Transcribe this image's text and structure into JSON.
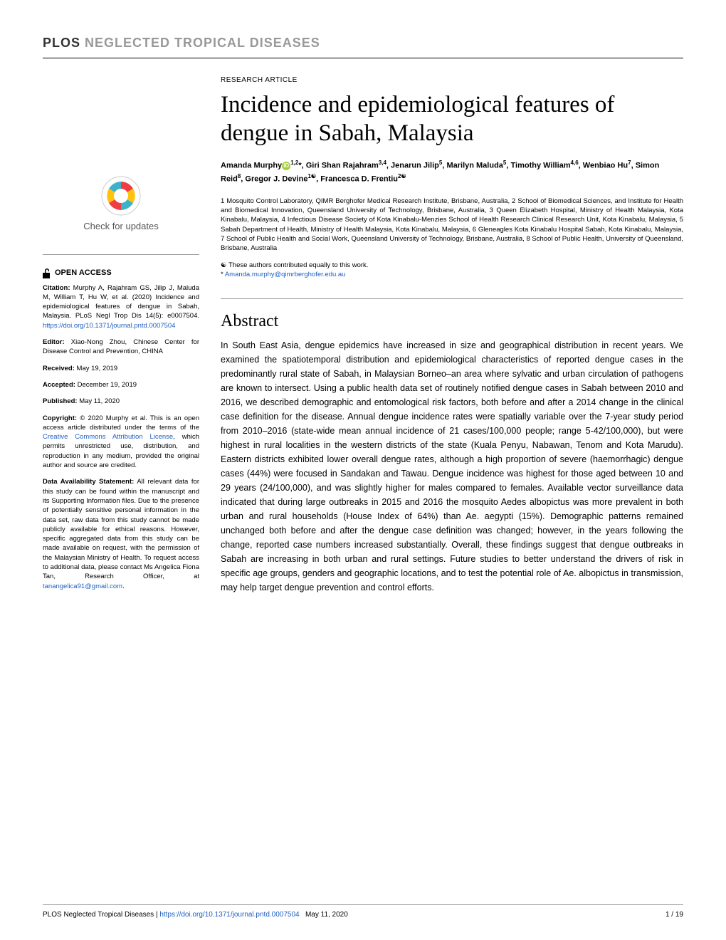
{
  "journal": {
    "brand": "PLOS",
    "name": "NEGLECTED TROPICAL DISEASES"
  },
  "article": {
    "type": "RESEARCH ARTICLE",
    "title": "Incidence and epidemiological features of dengue in Sabah, Malaysia",
    "authors_html": "Amanda Murphy<span class='orcid'>iD</span><sup>1,2</sup>*, Giri Shan Rajahram<sup>3,4</sup>, Jenarun Jilip<sup>5</sup>, Marilyn Maluda<sup>5</sup>, Timothy William<sup>4,6</sup>, Wenbiao Hu<sup>7</sup>, Simon Reid<sup>8</sup>, Gregor J. Devine<sup>1☯</sup>, Francesca D. Frentiu<sup>2☯</sup>",
    "affiliations": "1 Mosquito Control Laboratory, QIMR Berghofer Medical Research Institute, Brisbane, Australia, 2 School of Biomedical Sciences, and Institute for Health and Biomedical Innovation, Queensland University of Technology, Brisbane, Australia, 3 Queen Elizabeth Hospital, Ministry of Health Malaysia, Kota Kinabalu, Malaysia, 4 Infectious Disease Society of Kota Kinabalu-Menzies School of Health Research Clinical Research Unit, Kota Kinabalu, Malaysia, 5 Sabah Department of Health, Ministry of Health Malaysia, Kota Kinabalu, Malaysia, 6 Gleneagles Kota Kinabalu Hospital Sabah, Kota Kinabalu, Malaysia, 7 School of Public Health and Social Work, Queensland University of Technology, Brisbane, Australia, 8 School of Public Health, University of Queensland, Brisbane, Australia",
    "contrib_note": "☯ These authors contributed equally to this work.",
    "corresp_prefix": "* ",
    "corresp_email": "Amanda.murphy@qimrberghofer.edu.au"
  },
  "abstract": {
    "heading": "Abstract",
    "text": "In South East Asia, dengue epidemics have increased in size and geographical distribution in recent years. We examined the spatiotemporal distribution and epidemiological characteristics of reported dengue cases in the predominantly rural state of Sabah, in Malaysian Borneo–an area where sylvatic and urban circulation of pathogens are known to intersect. Using a public health data set of routinely notified dengue cases in Sabah between 2010 and 2016, we described demographic and entomological risk factors, both before and after a 2014 change in the clinical case definition for the disease. Annual dengue incidence rates were spatially variable over the 7-year study period from 2010–2016 (state-wide mean annual incidence of 21 cases/100,000 people; range 5-42/100,000), but were highest in rural localities in the western districts of the state (Kuala Penyu, Nabawan, Tenom and Kota Marudu). Eastern districts exhibited lower overall dengue rates, although a high proportion of severe (haemorrhagic) dengue cases (44%) were focused in Sandakan and Tawau. Dengue incidence was highest for those aged between 10 and 29 years (24/100,000), and was slightly higher for males compared to females. Available vector surveillance data indicated that during large outbreaks in 2015 and 2016 the mosquito Aedes albopictus was more prevalent in both urban and rural households (House Index of 64%) than Ae. aegypti (15%). Demographic patterns remained unchanged both before and after the dengue case definition was changed; however, in the years following the change, reported case numbers increased substantially. Overall, these findings suggest that dengue outbreaks in Sabah are increasing in both urban and rural settings. Future studies to better understand the drivers of risk in specific age groups, genders and geographic locations, and to test the potential role of Ae. albopictus in transmission, may help target dengue prevention and control efforts."
  },
  "sidebar": {
    "check_updates_label": "Check for updates",
    "open_access": "OPEN ACCESS",
    "citation_label": "Citation:",
    "citation": "Murphy A, Rajahram GS, Jilip J, Maluda M, William T, Hu W, et al. (2020) Incidence and epidemiological features of dengue in Sabah, Malaysia. PLoS Negl Trop Dis 14(5): e0007504.",
    "citation_doi": "https://doi.org/10.1371/journal.pntd.0007504",
    "editor_label": "Editor:",
    "editor": "Xiao-Nong Zhou, Chinese Center for Disease Control and Prevention, CHINA",
    "received_label": "Received:",
    "received": "May 19, 2019",
    "accepted_label": "Accepted:",
    "accepted": "December 19, 2019",
    "published_label": "Published:",
    "published": "May 11, 2020",
    "copyright_label": "Copyright:",
    "copyright_text_1": "© 2020 Murphy et al. This is an open access article distributed under the terms of the",
    "copyright_link": "Creative Commons Attribution License",
    "copyright_text_2": ", which permits unrestricted use, distribution, and reproduction in any medium, provided the original author and source are credited.",
    "data_label": "Data Availability Statement:",
    "data_text": "All relevant data for this study can be found within the manuscript and its Supporting Information files. Due to the presence of potentially sensitive personal information in the data set, raw data from this study cannot be made publicly available for ethical reasons. However, specific aggregated data from this study can be made available on request, with the permission of the Malaysian Ministry of Health. To request access to additional data, please contact Ms Angelica Fiona Tan, Research Officer, at",
    "data_email": "tanangelica91@gmail.com"
  },
  "footer": {
    "journal": "PLOS Neglected Tropical Diseases | ",
    "doi": "https://doi.org/10.1371/journal.pntd.0007504",
    "date": "May 11, 2020",
    "page": "1 / 19"
  },
  "colors": {
    "link": "#2060c0",
    "text": "#000000",
    "muted": "#999999",
    "orcid": "#a6ce39",
    "crossmark_red": "#ef3e42",
    "crossmark_yellow": "#ffc20e",
    "crossmark_blue": "#3eb1c8"
  }
}
